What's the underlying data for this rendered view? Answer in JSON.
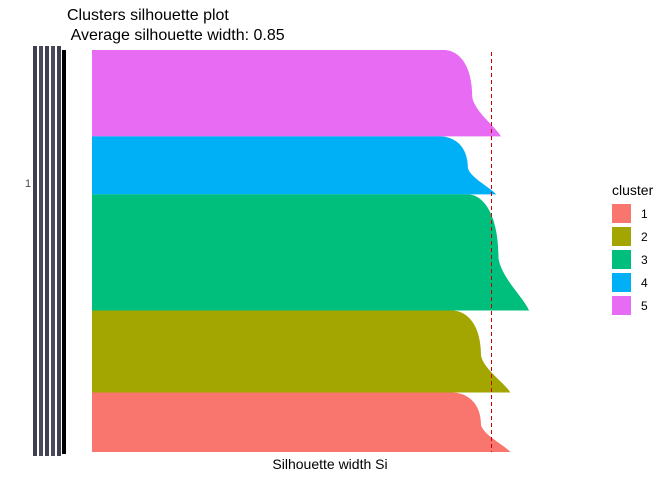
{
  "chart_data": {
    "type": "bar",
    "orientation": "horizontal",
    "title": "Clusters silhouette plot",
    "subtitle": " Average silhouette width: 0.85",
    "xlabel": "Silhouette width Si",
    "ylabel": "",
    "y_tick_label": "1",
    "average_silhouette_width": 0.85,
    "xlim": [
      0,
      1
    ],
    "grid": false,
    "legend": {
      "title": "cluster",
      "placement": "right",
      "entries": [
        {
          "label": "1",
          "color": "#F8766D"
        },
        {
          "label": "2",
          "color": "#A3A500"
        },
        {
          "label": "3",
          "color": "#00BF7D"
        },
        {
          "label": "4",
          "color": "#00B0F6"
        },
        {
          "label": "5",
          "color": "#E76BF3"
        }
      ]
    },
    "reference_line": {
      "value": 0.85,
      "color": "#CC0000",
      "style": "dashed"
    },
    "clusters_top_to_bottom": [
      {
        "cluster": "5",
        "size": 58,
        "max_si": 0.87
      },
      {
        "cluster": "4",
        "size": 39,
        "max_si": 0.86
      },
      {
        "cluster": "3",
        "size": 78,
        "max_si": 0.93
      },
      {
        "cluster": "2",
        "size": 55,
        "max_si": 0.89
      },
      {
        "cluster": "1",
        "size": 40,
        "max_si": 0.89
      }
    ]
  }
}
